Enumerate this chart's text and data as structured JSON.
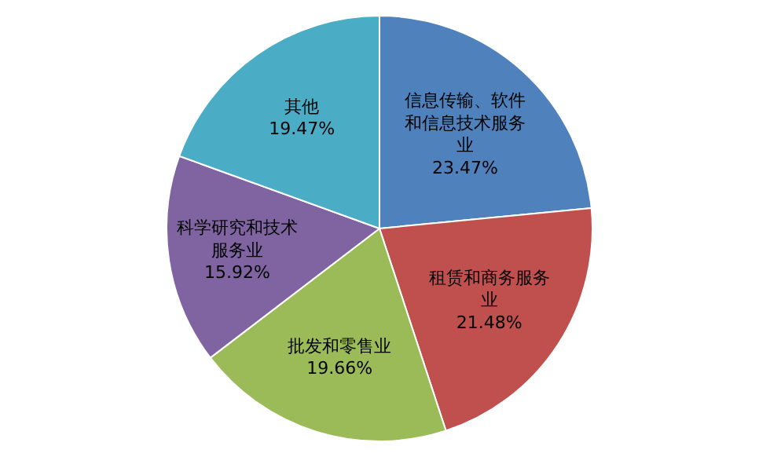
{
  "chart_data": {
    "type": "pie",
    "categories": [
      "信息传输、软件和信息技术服务业",
      "租赁和商务服务业",
      "批发和零售业",
      "科学研究和技术服务业",
      "其他"
    ],
    "values": [
      23.47,
      21.48,
      19.66,
      15.92,
      19.47
    ],
    "value_labels": [
      "23.47%",
      "21.48%",
      "19.66%",
      "15.92%",
      "19.47%"
    ],
    "colors": [
      "#4f81bd",
      "#c0504d",
      "#9bbb59",
      "#8064a2",
      "#4bacc6"
    ],
    "legend": false
  }
}
